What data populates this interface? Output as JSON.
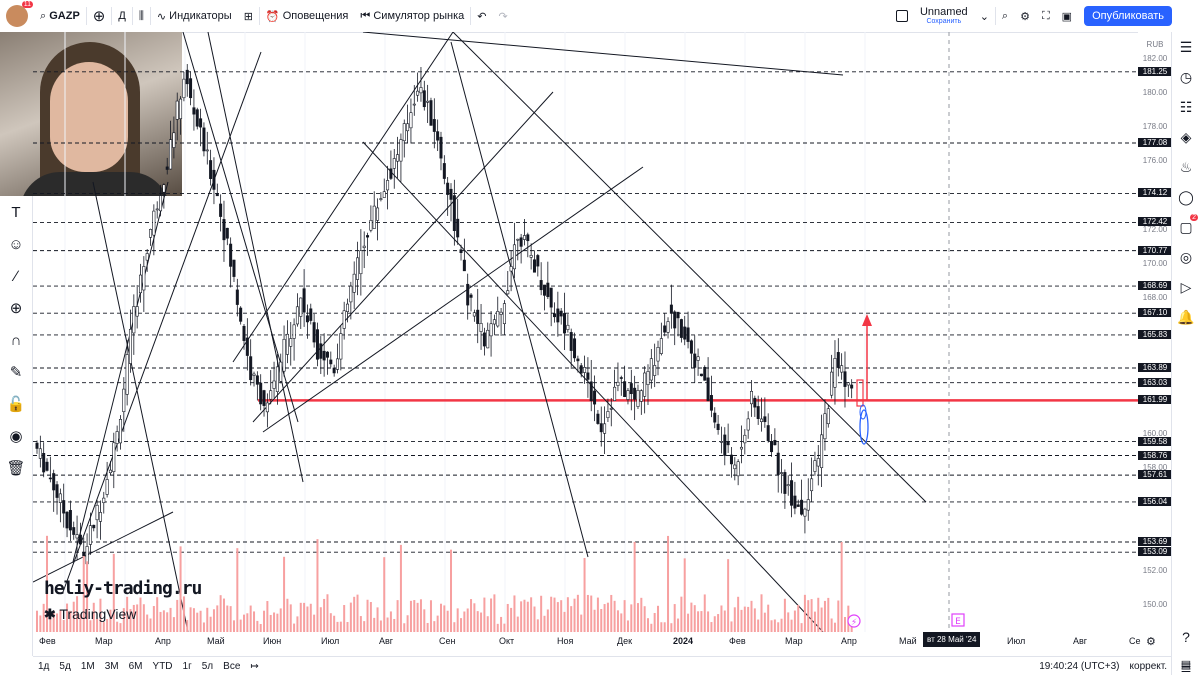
{
  "topbar": {
    "avatar_badge": "11",
    "symbol": "GAZP",
    "interval": "Д",
    "indicators_label": "Индикаторы",
    "alerts_label": "Оповещения",
    "replay_label": "Симулятор рынка",
    "layout_name": "Unnamed",
    "layout_save": "Сохранить",
    "publish_label": "Опубликовать"
  },
  "price_axis": {
    "currency": "RUB",
    "ticks": [
      "182.00",
      "180.00",
      "178.00",
      "176.00",
      "172.00",
      "170.00",
      "168.00",
      "160.00",
      "158.00",
      "152.00",
      "150.00"
    ],
    "levels": [
      "181.25",
      "177.08",
      "174.12",
      "172.42",
      "170.77",
      "168.69",
      "167.10",
      "165.83",
      "163.89",
      "163.03",
      "161.99",
      "159.58",
      "158.76",
      "157.61",
      "156.04",
      "153.69",
      "153.09"
    ]
  },
  "time_axis": {
    "labels": [
      "Фев",
      "Мар",
      "Апр",
      "Май",
      "Июн",
      "Июл",
      "Авг",
      "Сен",
      "Окт",
      "Ноя",
      "Дек",
      "2024",
      "Фев",
      "Мар",
      "Апр",
      "Май",
      "Июл",
      "Авг",
      "Се"
    ],
    "cursor_label": "вт 28 Май '24"
  },
  "bottombar": {
    "ranges": [
      "1д",
      "5д",
      "1М",
      "3М",
      "6М",
      "YTD",
      "1г",
      "5л",
      "Все"
    ],
    "clock": "19:40:24 (UTC+3)",
    "adjust": "коррект."
  },
  "watermark": {
    "site": "heliy-trading.ru",
    "brand": "TradingView"
  },
  "right_badge": "2",
  "colors": {
    "accent": "#2962ff",
    "support_line": "#f23645",
    "bull": "#131722",
    "volume": "#f7a0a0"
  },
  "chart_data": {
    "type": "candlestick",
    "symbol": "GAZP",
    "interval": "Д",
    "ylim": [
      149,
      183
    ],
    "horizontal_levels": [
      181.25,
      177.08,
      174.12,
      172.42,
      170.77,
      168.69,
      167.1,
      165.83,
      163.89,
      163.03,
      161.99,
      159.58,
      158.76,
      157.61,
      156.04,
      153.69,
      153.09
    ],
    "highlight_level": 161.99,
    "price_path": [
      [
        0,
        159.5
      ],
      [
        1,
        157.5
      ],
      [
        2,
        155.0
      ],
      [
        3,
        153.0
      ],
      [
        4,
        156.0
      ],
      [
        5,
        160.0
      ],
      [
        6,
        167.0
      ],
      [
        7,
        172.0
      ],
      [
        8,
        176.0
      ],
      [
        9,
        181.0
      ],
      [
        10,
        177.5
      ],
      [
        11,
        174.0
      ],
      [
        12,
        169.0
      ],
      [
        13,
        163.5
      ],
      [
        14,
        161.5
      ],
      [
        15,
        165.0
      ],
      [
        16,
        168.0
      ],
      [
        17,
        165.0
      ],
      [
        18,
        164.0
      ],
      [
        19,
        168.5
      ],
      [
        20,
        172.0
      ],
      [
        21,
        174.5
      ],
      [
        22,
        177.0
      ],
      [
        23,
        180.5
      ],
      [
        24,
        178.0
      ],
      [
        25,
        173.5
      ],
      [
        26,
        168.0
      ],
      [
        27,
        165.5
      ],
      [
        28,
        167.0
      ],
      [
        29,
        172.0
      ],
      [
        30,
        170.0
      ],
      [
        31,
        167.5
      ],
      [
        32,
        166.0
      ],
      [
        33,
        163.5
      ],
      [
        34,
        160.5
      ],
      [
        35,
        163.0
      ],
      [
        36,
        162.0
      ],
      [
        37,
        164.0
      ],
      [
        38,
        167.0
      ],
      [
        39,
        166.0
      ],
      [
        40,
        163.5
      ],
      [
        41,
        160.0
      ],
      [
        42,
        158.0
      ],
      [
        43,
        162.0
      ],
      [
        44,
        160.0
      ],
      [
        45,
        157.0
      ],
      [
        46,
        155.5
      ],
      [
        47,
        158.5
      ],
      [
        48,
        164.5
      ],
      [
        49,
        162.5
      ]
    ]
  }
}
